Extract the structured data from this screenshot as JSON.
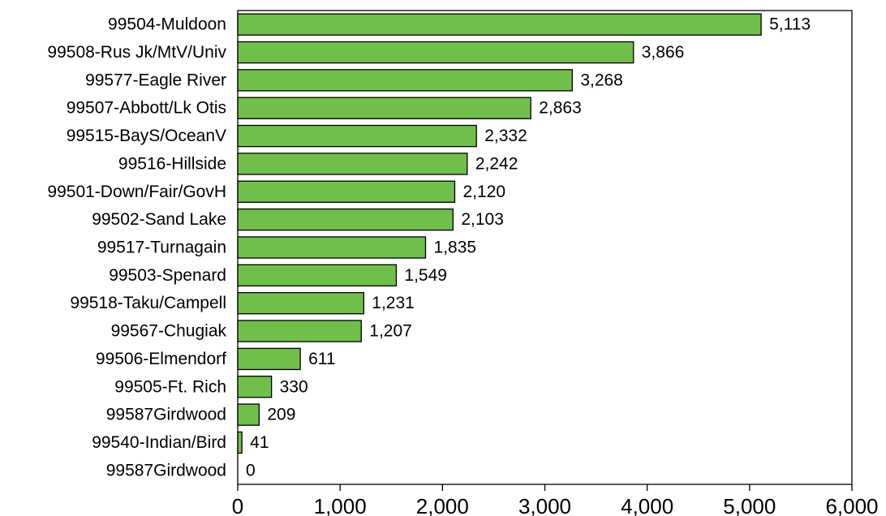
{
  "chart_data": {
    "type": "bar",
    "orientation": "horizontal",
    "title": "",
    "xlabel": "",
    "ylabel": "",
    "categories": [
      "99504-Muldoon",
      "99508-Rus Jk/MtV/Univ",
      "99577-Eagle River",
      "99507-Abbott/Lk Otis",
      "99515-BayS/OceanV",
      "99516-Hillside",
      "99501-Down/Fair/GovH",
      "99502-Sand Lake",
      "99517-Turnagain",
      "99503-Spenard",
      "99518-Taku/Campell",
      "99567-Chugiak",
      "99506-Elmendorf",
      "99505-Ft. Rich",
      "99587Girdwood",
      "99540-Indian/Bird",
      "99587Girdwood"
    ],
    "values": [
      5113,
      3866,
      3268,
      2863,
      2332,
      2242,
      2120,
      2103,
      1835,
      1549,
      1231,
      1207,
      611,
      330,
      209,
      41,
      0
    ],
    "value_labels": [
      "5,113",
      "3,866",
      "3,268",
      "2,863",
      "2,332",
      "2,242",
      "2,120",
      "2,103",
      "1,835",
      "1,549",
      "1,231",
      "1,207",
      "611",
      "330",
      "209",
      "41",
      "0"
    ],
    "xlim": [
      0,
      6000
    ],
    "xticks": [
      0,
      1000,
      2000,
      3000,
      4000,
      5000,
      6000
    ],
    "xtick_labels": [
      "0",
      "1,000",
      "2,000",
      "3,000",
      "4,000",
      "5,000",
      "6,000"
    ],
    "bar_color": "#70bf4a",
    "grid": false,
    "legend": "none"
  }
}
